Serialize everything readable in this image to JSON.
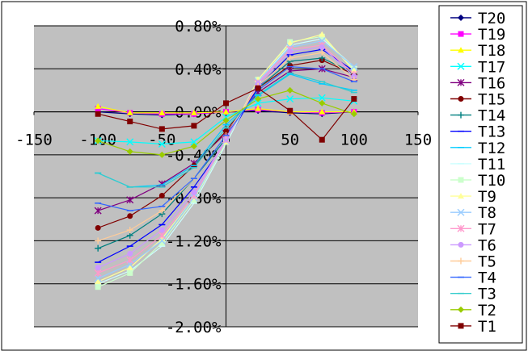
{
  "chart_data": {
    "type": "line",
    "title": "",
    "xlabel": "",
    "ylabel": "",
    "xlim": [
      -150,
      150
    ],
    "ylim": [
      -2.0,
      0.8
    ],
    "x_ticks": [
      "-150",
      "-100",
      "-50",
      "0",
      "50",
      "100",
      "150"
    ],
    "y_ticks": [
      "0.80%",
      "0.40%",
      "0.00%",
      "-0.40%",
      "-0.80%",
      "-1.20%",
      "-1.60%",
      "-2.00%"
    ],
    "x_tick_values": [
      -150,
      -100,
      -50,
      0,
      50,
      100,
      150
    ],
    "y_tick_values": [
      0.8,
      0.4,
      0.0,
      -0.4,
      -0.8,
      -1.2,
      -1.6,
      -2.0
    ],
    "grid": "horizontal",
    "plot_background": "#c0c0c0",
    "legend_position": "right",
    "x": [
      -100,
      -75,
      -50,
      -25,
      0,
      25,
      50,
      75,
      100
    ],
    "series": [
      {
        "name": "T20",
        "color": "#000080",
        "marker": "diamond",
        "values": [
          0.0,
          -0.02,
          -0.03,
          -0.02,
          0.0,
          0.01,
          -0.01,
          -0.02,
          0.0
        ]
      },
      {
        "name": "T19",
        "color": "#ff00ff",
        "marker": "square",
        "values": [
          0.03,
          -0.01,
          -0.02,
          -0.02,
          0.0,
          0.02,
          0.0,
          -0.01,
          0.0
        ]
      },
      {
        "name": "T18",
        "color": "#ffff00",
        "marker": "triangle",
        "values": [
          0.05,
          -0.01,
          -0.01,
          -0.01,
          0.0,
          0.03,
          0.0,
          0.0,
          0.0
        ]
      },
      {
        "name": "T17",
        "color": "#00ffff",
        "marker": "x",
        "values": [
          -0.27,
          -0.28,
          -0.3,
          -0.28,
          -0.05,
          0.08,
          0.12,
          0.13,
          0.1
        ]
      },
      {
        "name": "T16",
        "color": "#800080",
        "marker": "star",
        "values": [
          -0.92,
          -0.82,
          -0.67,
          -0.48,
          -0.2,
          0.18,
          0.38,
          0.4,
          0.32
        ]
      },
      {
        "name": "T15",
        "color": "#800000",
        "marker": "circle",
        "values": [
          -1.08,
          -0.97,
          -0.78,
          -0.5,
          -0.18,
          0.22,
          0.43,
          0.48,
          0.35
        ]
      },
      {
        "name": "T14",
        "color": "#008080",
        "marker": "plus",
        "values": [
          -1.27,
          -1.15,
          -0.95,
          -0.62,
          -0.25,
          0.22,
          0.47,
          0.5,
          0.36
        ]
      },
      {
        "name": "T13",
        "color": "#0000ff",
        "marker": "dash",
        "values": [
          -1.4,
          -1.25,
          -1.05,
          -0.7,
          -0.28,
          0.23,
          0.53,
          0.58,
          0.38
        ]
      },
      {
        "name": "T12",
        "color": "#00ccff",
        "marker": "dash",
        "values": [
          -0.57,
          -0.7,
          -0.68,
          -0.5,
          -0.12,
          0.15,
          0.35,
          0.26,
          0.2
        ]
      },
      {
        "name": "T11",
        "color": "#ccffff",
        "marker": "dash",
        "values": [
          -1.6,
          -1.48,
          -1.25,
          -0.85,
          -0.3,
          0.28,
          0.62,
          0.68,
          0.42
        ]
      },
      {
        "name": "T10",
        "color": "#ccffcc",
        "marker": "square",
        "values": [
          -1.63,
          -1.5,
          -1.22,
          -0.82,
          -0.28,
          0.3,
          0.65,
          0.7,
          0.4
        ]
      },
      {
        "name": "T9",
        "color": "#ffff99",
        "marker": "triangle",
        "values": [
          -1.58,
          -1.45,
          -1.18,
          -0.8,
          -0.28,
          0.3,
          0.64,
          0.72,
          0.38
        ]
      },
      {
        "name": "T8",
        "color": "#99ccff",
        "marker": "x",
        "values": [
          -1.55,
          -1.42,
          -1.2,
          -0.8,
          -0.27,
          0.28,
          0.6,
          0.66,
          0.42
        ]
      },
      {
        "name": "T7",
        "color": "#ff99cc",
        "marker": "star",
        "values": [
          -1.5,
          -1.38,
          -1.15,
          -0.78,
          -0.26,
          0.27,
          0.58,
          0.62,
          0.35
        ]
      },
      {
        "name": "T6",
        "color": "#cc99ff",
        "marker": "circle",
        "values": [
          -1.45,
          -1.32,
          -1.1,
          -0.75,
          -0.25,
          0.26,
          0.56,
          0.6,
          0.33
        ]
      },
      {
        "name": "T5",
        "color": "#ffcc99",
        "marker": "plus",
        "values": [
          -1.2,
          -1.1,
          -0.92,
          -0.62,
          -0.22,
          0.24,
          0.5,
          0.55,
          0.3
        ]
      },
      {
        "name": "T4",
        "color": "#3366ff",
        "marker": "dash",
        "values": [
          -0.85,
          -0.92,
          -0.88,
          -0.62,
          -0.22,
          0.2,
          0.42,
          0.4,
          0.28
        ]
      },
      {
        "name": "T3",
        "color": "#33cccc",
        "marker": "dash",
        "values": [
          -0.57,
          -0.7,
          -0.7,
          -0.52,
          -0.15,
          0.16,
          0.36,
          0.28,
          0.18
        ]
      },
      {
        "name": "T2",
        "color": "#99cc00",
        "marker": "diamond",
        "values": [
          -0.27,
          -0.37,
          -0.4,
          -0.32,
          -0.08,
          0.12,
          0.2,
          0.08,
          -0.02
        ]
      },
      {
        "name": "T1",
        "color": "#800000",
        "marker": "square",
        "values": [
          -0.02,
          -0.09,
          -0.16,
          -0.13,
          0.08,
          0.22,
          0.01,
          -0.26,
          0.12
        ]
      }
    ]
  }
}
